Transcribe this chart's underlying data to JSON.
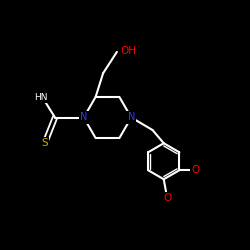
{
  "background_color": "#000000",
  "bond_color": "#ffffff",
  "atom_colors": {
    "N": "#3333ff",
    "O": "#ff0000",
    "S": "#ccaa00",
    "C": "#ffffff"
  },
  "figsize": [
    2.5,
    2.5
  ],
  "dpi": 100,
  "xlim": [
    0,
    10
  ],
  "ylim": [
    0,
    10
  ]
}
